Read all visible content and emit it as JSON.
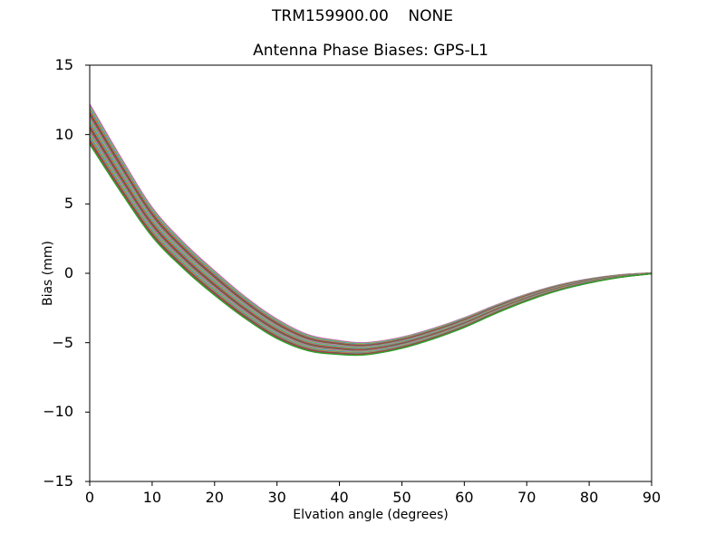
{
  "figure": {
    "suptitle": "TRM159900.00    NONE",
    "title": "Antenna Phase Biases: GPS-L1"
  },
  "chart_data": {
    "type": "line",
    "suptitle": "TRM159900.00    NONE",
    "title": "Antenna Phase Biases: GPS-L1",
    "xlabel": "Elvation angle (degrees)",
    "ylabel": "Bias (mm)",
    "xlim": [
      0,
      90
    ],
    "ylim": [
      -15,
      15
    ],
    "xticks": [
      0,
      10,
      20,
      30,
      40,
      50,
      60,
      70,
      80,
      90
    ],
    "yticks": [
      15,
      10,
      5,
      0,
      -5,
      -10,
      -15
    ],
    "grid": false,
    "legend": "none",
    "series_note": "Bundle of 30 overlapping per-satellite antenna phase bias curves; all start at +9.3 to +12.2 mm at 0 deg, cross zero near 18-22 deg, reach minimum of -5.0 to -5.9 mm near 43 deg, and converge flat to 0 mm at 90 deg",
    "x_control": [
      0,
      5,
      10,
      15,
      20,
      25,
      30,
      35,
      40,
      43,
      45,
      50,
      55,
      60,
      65,
      70,
      75,
      80,
      85,
      90
    ],
    "center_bias_mm": [
      10.75,
      7.1,
      3.7,
      1.3,
      -0.7,
      -2.5,
      -4.0,
      -5.0,
      -5.35,
      -5.45,
      -5.4,
      -5.0,
      -4.35,
      -3.55,
      -2.6,
      -1.75,
      -1.05,
      -0.55,
      -0.2,
      0.0
    ],
    "bundle_halfwidth_mm": [
      1.45,
      1.25,
      1.05,
      0.95,
      0.88,
      0.78,
      0.7,
      0.58,
      0.5,
      0.45,
      0.43,
      0.4,
      0.38,
      0.35,
      0.3,
      0.25,
      0.2,
      0.15,
      0.09,
      0.03
    ],
    "n_lines": 30,
    "line_width": 1.4,
    "palette": [
      "#e377c2",
      "#9467bd",
      "#bcbd22",
      "#17becf",
      "#7f7f7f",
      "#ff7f0e",
      "#1f77b4",
      "#d62728",
      "#8c564b",
      "#2ca02c"
    ],
    "spine_color": "#000000",
    "background": "#ffffff"
  },
  "axes": {
    "xtick_labels": [
      "0",
      "10",
      "20",
      "30",
      "40",
      "50",
      "60",
      "70",
      "80",
      "90"
    ],
    "ytick_labels": [
      "15",
      "10",
      "5",
      "0",
      "−5",
      "−10",
      "−15"
    ]
  }
}
